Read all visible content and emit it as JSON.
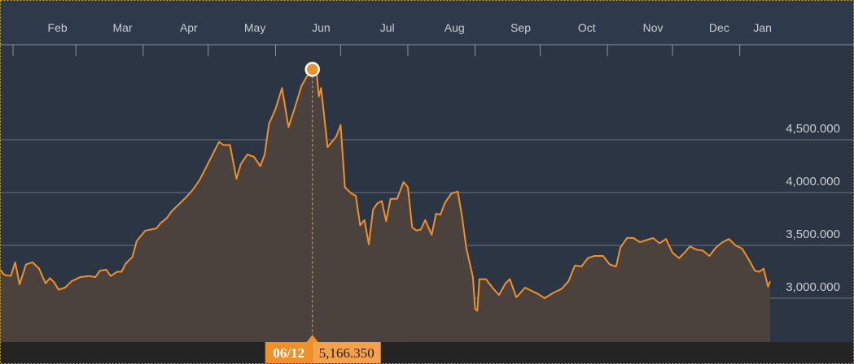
{
  "chart_data": {
    "type": "area",
    "x_labels": [
      "Feb",
      "Mar",
      "Apr",
      "May",
      "Jun",
      "Jul",
      "Aug",
      "Sep",
      "Oct",
      "Nov",
      "Dec",
      "Jan"
    ],
    "y_ticks": [
      "4,500.000",
      "4,000.000",
      "3,500.000",
      "3,000.000"
    ],
    "y_tick_values": [
      4500,
      4000,
      3500,
      3000
    ],
    "ylim": [
      2600,
      5400
    ],
    "grid": true,
    "colors": {
      "line": "#f0902a",
      "area": "#4b423d",
      "background": "#2b3544",
      "grid": "#6b7280"
    },
    "series": [
      {
        "points": [
          [
            "01-20",
            3270
          ],
          [
            "01-22",
            3220
          ],
          [
            "01-25",
            3210
          ],
          [
            "01-27",
            3340
          ],
          [
            "01-29",
            3130
          ],
          [
            "02-01",
            3320
          ],
          [
            "02-04",
            3340
          ],
          [
            "02-07",
            3280
          ],
          [
            "02-10",
            3140
          ],
          [
            "02-12",
            3190
          ],
          [
            "02-14",
            3150
          ],
          [
            "02-16",
            3080
          ],
          [
            "02-19",
            3100
          ],
          [
            "02-22",
            3160
          ],
          [
            "02-26",
            3200
          ],
          [
            "03-01",
            3210
          ],
          [
            "03-04",
            3200
          ],
          [
            "03-06",
            3260
          ],
          [
            "03-09",
            3270
          ],
          [
            "03-11",
            3210
          ],
          [
            "03-14",
            3250
          ],
          [
            "03-16",
            3250
          ],
          [
            "03-18",
            3330
          ],
          [
            "03-21",
            3390
          ],
          [
            "03-23",
            3540
          ],
          [
            "03-27",
            3640
          ],
          [
            "04-01",
            3660
          ],
          [
            "04-03",
            3710
          ],
          [
            "04-06",
            3760
          ],
          [
            "04-08",
            3820
          ],
          [
            "04-12",
            3900
          ],
          [
            "04-15",
            3960
          ],
          [
            "04-18",
            4030
          ],
          [
            "04-21",
            4120
          ],
          [
            "04-24",
            4240
          ],
          [
            "04-27",
            4360
          ],
          [
            "04-30",
            4480
          ],
          [
            "05-02",
            4450
          ],
          [
            "05-05",
            4450
          ],
          [
            "05-08",
            4130
          ],
          [
            "05-10",
            4270
          ],
          [
            "05-13",
            4360
          ],
          [
            "05-16",
            4340
          ],
          [
            "05-19",
            4250
          ],
          [
            "05-21",
            4360
          ],
          [
            "05-23",
            4650
          ],
          [
            "05-26",
            4790
          ],
          [
            "05-29",
            4990
          ],
          [
            "06-01",
            4620
          ],
          [
            "06-04",
            4810
          ],
          [
            "06-07",
            5010
          ],
          [
            "06-10",
            5120
          ],
          [
            "06-12",
            5166
          ],
          [
            "06-14",
            5120
          ],
          [
            "06-15",
            4910
          ],
          [
            "06-16",
            4990
          ],
          [
            "06-19",
            4430
          ],
          [
            "06-23",
            4530
          ],
          [
            "06-25",
            4640
          ],
          [
            "06-27",
            4050
          ],
          [
            "06-30",
            3990
          ],
          [
            "07-02",
            3970
          ],
          [
            "07-04",
            3690
          ],
          [
            "07-06",
            3740
          ],
          [
            "07-08",
            3510
          ],
          [
            "07-10",
            3840
          ],
          [
            "07-12",
            3900
          ],
          [
            "07-14",
            3920
          ],
          [
            "07-16",
            3730
          ],
          [
            "07-18",
            3940
          ],
          [
            "07-21",
            3940
          ],
          [
            "07-24",
            4100
          ],
          [
            "07-26",
            4050
          ],
          [
            "07-28",
            3670
          ],
          [
            "07-30",
            3640
          ],
          [
            "08-01",
            3650
          ],
          [
            "08-03",
            3740
          ],
          [
            "08-06",
            3600
          ],
          [
            "08-08",
            3800
          ],
          [
            "08-10",
            3790
          ],
          [
            "08-12",
            3900
          ],
          [
            "08-15",
            3990
          ],
          [
            "08-18",
            4010
          ],
          [
            "08-20",
            3770
          ],
          [
            "08-22",
            3470
          ],
          [
            "08-25",
            3200
          ],
          [
            "08-26",
            2900
          ],
          [
            "08-27",
            2880
          ],
          [
            "08-28",
            3180
          ],
          [
            "08-31",
            3180
          ],
          [
            "09-03",
            3100
          ],
          [
            "09-06",
            3030
          ],
          [
            "09-09",
            3140
          ],
          [
            "09-11",
            3180
          ],
          [
            "09-14",
            3010
          ],
          [
            "09-15",
            3030
          ],
          [
            "09-18",
            3100
          ],
          [
            "09-21",
            3070
          ],
          [
            "09-24",
            3040
          ],
          [
            "09-27",
            3000
          ],
          [
            "10-01",
            3050
          ],
          [
            "10-05",
            3090
          ],
          [
            "10-08",
            3160
          ],
          [
            "10-11",
            3310
          ],
          [
            "10-14",
            3300
          ],
          [
            "10-17",
            3380
          ],
          [
            "10-20",
            3400
          ],
          [
            "10-24",
            3400
          ],
          [
            "10-27",
            3320
          ],
          [
            "10-30",
            3300
          ],
          [
            "11-01",
            3480
          ],
          [
            "11-04",
            3570
          ],
          [
            "11-07",
            3570
          ],
          [
            "11-10",
            3530
          ],
          [
            "11-13",
            3550
          ],
          [
            "11-16",
            3570
          ],
          [
            "11-19",
            3520
          ],
          [
            "11-22",
            3560
          ],
          [
            "11-25",
            3430
          ],
          [
            "11-28",
            3380
          ],
          [
            "12-01",
            3440
          ],
          [
            "12-03",
            3490
          ],
          [
            "12-06",
            3460
          ],
          [
            "12-09",
            3450
          ],
          [
            "12-12",
            3400
          ],
          [
            "12-15",
            3480
          ],
          [
            "12-18",
            3530
          ],
          [
            "12-21",
            3560
          ],
          [
            "12-24",
            3500
          ],
          [
            "12-27",
            3470
          ],
          [
            "12-30",
            3370
          ],
          [
            "01-02",
            3260
          ],
          [
            "01-04",
            3250
          ],
          [
            "01-06",
            3280
          ],
          [
            "01-08",
            3110
          ],
          [
            "01-09",
            3160
          ]
        ]
      }
    ],
    "highlight": {
      "label": "06/12",
      "value_label": "5,166.350",
      "value": 5166.35,
      "x": "06-12"
    }
  }
}
